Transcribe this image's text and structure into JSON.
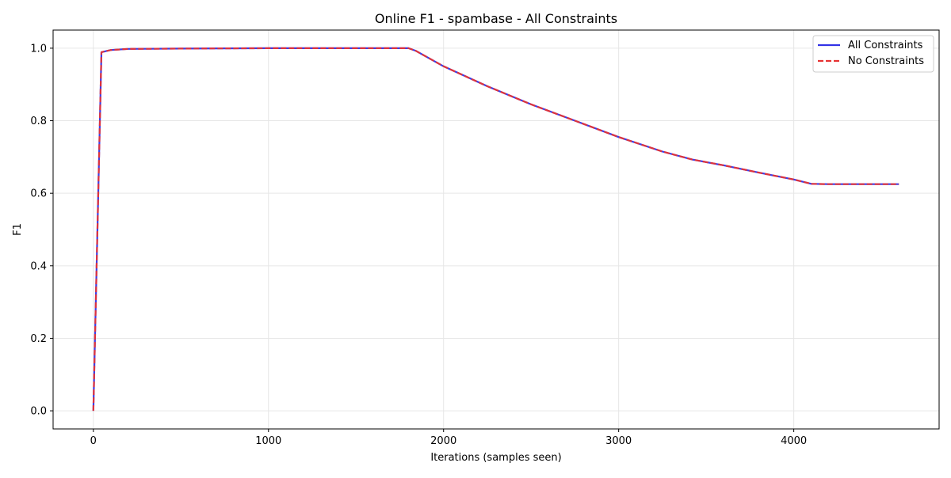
{
  "chart_data": {
    "type": "line",
    "title": "Online F1 - spambase - All Constraints",
    "xlabel": "Iterations (samples seen)",
    "ylabel": "F1",
    "xlim": [
      -230,
      4830
    ],
    "ylim": [
      -0.05,
      1.05
    ],
    "x_ticks": [
      0,
      1000,
      2000,
      3000,
      4000
    ],
    "y_ticks": [
      0.0,
      0.2,
      0.4,
      0.6,
      0.8,
      1.0
    ],
    "x_tick_labels": [
      "0",
      "1000",
      "2000",
      "3000",
      "4000"
    ],
    "y_tick_labels": [
      "0.0",
      "0.2",
      "0.4",
      "0.6",
      "0.8",
      "1.0"
    ],
    "grid": true,
    "legend_position": "top-right",
    "series": [
      {
        "name": "All Constraints",
        "color": "#3333e6",
        "style": "solid",
        "points": [
          [
            0,
            0.0
          ],
          [
            46,
            0.989
          ],
          [
            100,
            0.995
          ],
          [
            200,
            0.998
          ],
          [
            500,
            0.999
          ],
          [
            1000,
            1.0
          ],
          [
            1500,
            1.0
          ],
          [
            1800,
            1.0
          ],
          [
            1840,
            0.993
          ],
          [
            2000,
            0.95
          ],
          [
            2250,
            0.895
          ],
          [
            2500,
            0.845
          ],
          [
            2750,
            0.8
          ],
          [
            3000,
            0.755
          ],
          [
            3250,
            0.715
          ],
          [
            3420,
            0.693
          ],
          [
            3600,
            0.677
          ],
          [
            3800,
            0.657
          ],
          [
            4000,
            0.638
          ],
          [
            4100,
            0.626
          ],
          [
            4200,
            0.625
          ],
          [
            4600,
            0.625
          ]
        ]
      },
      {
        "name": "No Constraints",
        "color": "#e63333",
        "style": "dashed",
        "points": [
          [
            0,
            0.0
          ],
          [
            46,
            0.989
          ],
          [
            100,
            0.995
          ],
          [
            200,
            0.998
          ],
          [
            500,
            0.999
          ],
          [
            1000,
            1.0
          ],
          [
            1500,
            1.0
          ],
          [
            1800,
            1.0
          ],
          [
            1840,
            0.993
          ],
          [
            2000,
            0.95
          ],
          [
            2250,
            0.895
          ],
          [
            2500,
            0.845
          ],
          [
            2750,
            0.8
          ],
          [
            3000,
            0.755
          ],
          [
            3250,
            0.715
          ],
          [
            3420,
            0.693
          ],
          [
            3600,
            0.677
          ],
          [
            3800,
            0.657
          ],
          [
            4000,
            0.638
          ],
          [
            4100,
            0.626
          ],
          [
            4200,
            0.625
          ],
          [
            4600,
            0.625
          ]
        ]
      }
    ]
  }
}
